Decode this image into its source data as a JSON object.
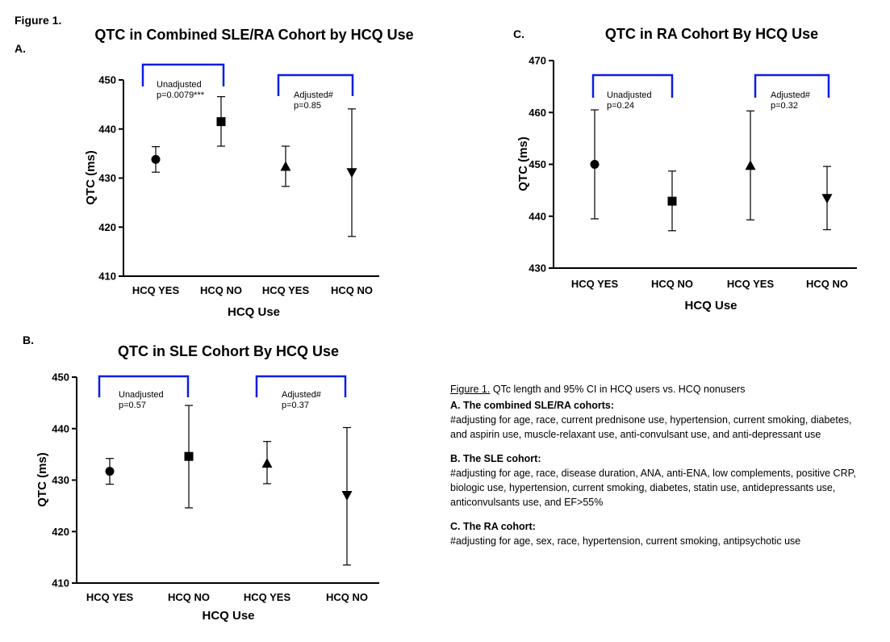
{
  "figure_label": "Figure 1.",
  "chart_data": [
    {
      "panel": "A.",
      "type": "scatter",
      "title": "QTC in Combined SLE/RA Cohort by HCQ Use",
      "xlabel": "HCQ Use",
      "ylabel": "QTC (ms)",
      "ylim": [
        410,
        450
      ],
      "yticks": [
        410,
        420,
        430,
        440,
        450
      ],
      "categories": [
        "HCQ YES",
        "HCQ NO",
        "HCQ YES",
        "HCQ NO"
      ],
      "points": [
        {
          "category": "HCQ YES",
          "mean": 433.8,
          "lower": 431.2,
          "upper": 436.4,
          "marker": "circle"
        },
        {
          "category": "HCQ NO",
          "mean": 441.5,
          "lower": 436.5,
          "upper": 446.6,
          "marker": "square"
        },
        {
          "category": "HCQ YES",
          "mean": 432.3,
          "lower": 428.3,
          "upper": 436.5,
          "marker": "triangle-up"
        },
        {
          "category": "HCQ NO",
          "mean": 431.2,
          "lower": 418.1,
          "upper": 444.1,
          "marker": "triangle-down"
        }
      ],
      "annotations": [
        {
          "lines": [
            "Unadjusted",
            "p=0.0079***"
          ]
        },
        {
          "lines": [
            "Adjusted#",
            "p=0.85"
          ]
        }
      ]
    },
    {
      "panel": "B.",
      "type": "scatter",
      "title": "QTC in SLE Cohort By HCQ Use",
      "xlabel": "HCQ Use",
      "ylabel": "QTC (ms)",
      "ylim": [
        410,
        450
      ],
      "yticks": [
        410,
        420,
        430,
        440,
        450
      ],
      "categories": [
        "HCQ YES",
        "HCQ NO",
        "HCQ YES",
        "HCQ NO"
      ],
      "points": [
        {
          "category": "HCQ YES",
          "mean": 431.7,
          "lower": 429.2,
          "upper": 434.2,
          "marker": "circle"
        },
        {
          "category": "HCQ NO",
          "mean": 434.6,
          "lower": 424.6,
          "upper": 444.5,
          "marker": "square"
        },
        {
          "category": "HCQ YES",
          "mean": 433.2,
          "lower": 429.3,
          "upper": 437.5,
          "marker": "triangle-up"
        },
        {
          "category": "HCQ NO",
          "mean": 427.1,
          "lower": 413.5,
          "upper": 440.2,
          "marker": "triangle-down"
        }
      ],
      "annotations": [
        {
          "lines": [
            "Unadjusted",
            "p=0.57"
          ]
        },
        {
          "lines": [
            "Adjusted#",
            "p=0.37"
          ]
        }
      ]
    },
    {
      "panel": "C.",
      "type": "scatter",
      "title": "QTC in RA Cohort By HCQ  Use",
      "xlabel": "HCQ Use",
      "ylabel": "QTC (ms)",
      "ylim": [
        430,
        470
      ],
      "yticks": [
        430,
        440,
        450,
        460,
        470
      ],
      "categories": [
        "HCQ YES",
        "HCQ NO",
        "HCQ YES",
        "HCQ NO"
      ],
      "points": [
        {
          "category": "HCQ YES",
          "mean": 450.0,
          "lower": 439.5,
          "upper": 460.5,
          "marker": "circle"
        },
        {
          "category": "HCQ NO",
          "mean": 442.9,
          "lower": 437.2,
          "upper": 448.7,
          "marker": "square"
        },
        {
          "category": "HCQ YES",
          "mean": 449.7,
          "lower": 439.3,
          "upper": 460.3,
          "marker": "triangle-up"
        },
        {
          "category": "HCQ NO",
          "mean": 443.5,
          "lower": 437.4,
          "upper": 449.6,
          "marker": "triangle-down"
        }
      ],
      "annotations": [
        {
          "lines": [
            "Unadjusted",
            "p=0.24"
          ]
        },
        {
          "lines": [
            "Adjusted#",
            "p=0.32"
          ]
        }
      ]
    }
  ],
  "legend": {
    "title_underlined": "Figure 1.",
    "title_rest": " QTc length and 95% CI in HCQ users vs. HCQ nonusers",
    "sections": [
      {
        "heading": "A. The combined SLE/RA cohorts:",
        "lines": [
          "#adjusting for age, race, current prednisone use, hypertension, current smoking, diabetes,",
          "and aspirin use, muscle-relaxant use, anti-convulsant use, and anti-depressant use"
        ]
      },
      {
        "heading": "B. The SLE cohort:",
        "lines": [
          "#adjusting for age, race, disease duration, ANA, anti-ENA, low complements, positive CRP,",
          "biologic use, hypertension, current smoking, diabetes, statin use, antidepressants use,",
          "anticonvulsants use, and EF>55%"
        ]
      },
      {
        "heading": "C. The RA cohort:",
        "lines": [
          "#adjusting for age, sex, race, hypertension, current smoking, antipsychotic use"
        ]
      }
    ]
  }
}
